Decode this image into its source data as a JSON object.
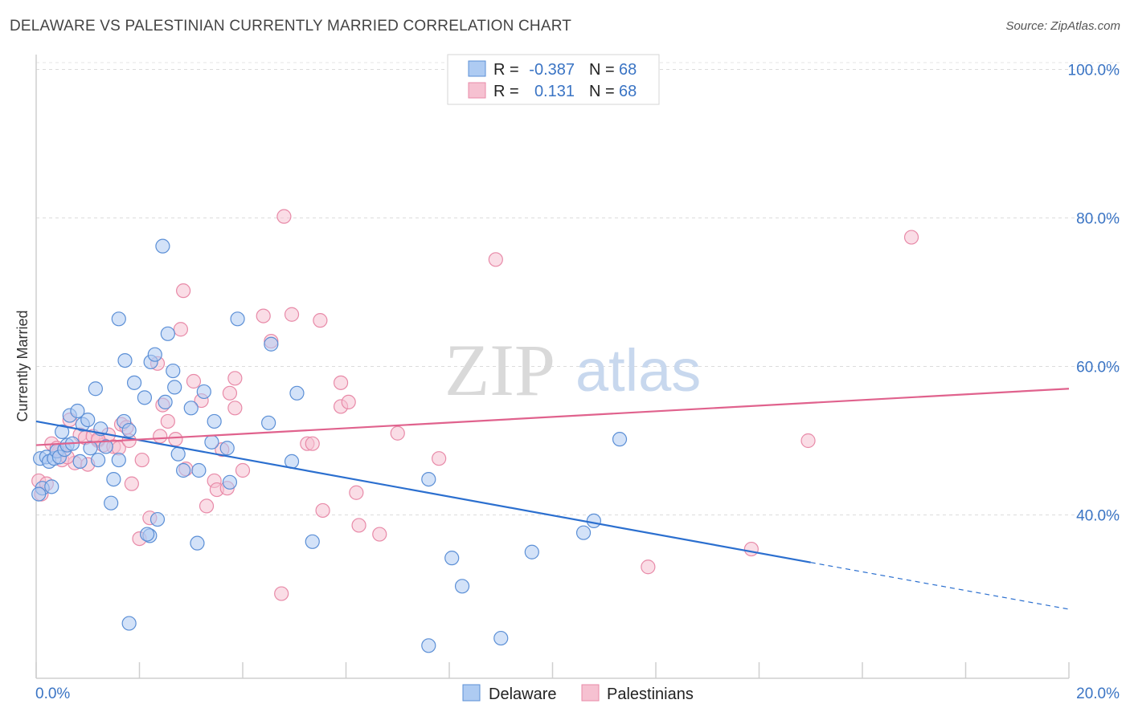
{
  "header": {
    "title": "DELAWARE VS PALESTINIAN CURRENTLY MARRIED CORRELATION CHART",
    "source": "Source: ZipAtlas.com"
  },
  "watermark": {
    "zip": "ZIP",
    "atlas": "atlas"
  },
  "legend": {
    "row1": {
      "r_label": "R =",
      "r_value": "-0.387",
      "n_label": "N =",
      "n_value": "68"
    },
    "row2": {
      "r_label": "R =",
      "r_value": "0.131",
      "n_label": "N =",
      "n_value": "68"
    }
  },
  "colors": {
    "delaware_fill": "#aecbf2",
    "delaware_stroke": "#5b8fd6",
    "delaware_line": "#2b6fcf",
    "palestinian_fill": "#f6c1d1",
    "palestinian_stroke": "#e88aa8",
    "palestinian_line": "#e0628d",
    "axis_text": "#3a74c4"
  },
  "chart_data": {
    "type": "scatter",
    "title": "DELAWARE VS PALESTINIAN CURRENTLY MARRIED CORRELATION CHART",
    "xlabel": "",
    "ylabel": "Currently Married",
    "xlim": [
      0,
      20
    ],
    "ylim": [
      18,
      102
    ],
    "x_tick_labels": [
      "0.0%",
      "20.0%"
    ],
    "y_ticks": [
      40,
      60,
      80,
      100
    ],
    "y_tick_labels": [
      "40.0%",
      "60.0%",
      "80.0%",
      "100.0%"
    ],
    "grid": true,
    "legend_position": "bottom",
    "series": [
      {
        "name": "Delaware",
        "r": -0.387,
        "n": 68,
        "trend": {
          "x0": 0,
          "y0": 52.6,
          "x1": 15,
          "y1": 33.6,
          "dashed_to_x": 20,
          "dashed_to_y": 27.3
        },
        "points": [
          [
            0.08,
            47.6
          ],
          [
            0.12,
            43.6
          ],
          [
            0.2,
            47.8
          ],
          [
            0.25,
            47.2
          ],
          [
            0.3,
            43.8
          ],
          [
            0.35,
            47.6
          ],
          [
            0.4,
            48.6
          ],
          [
            0.45,
            47.8
          ],
          [
            0.5,
            51.2
          ],
          [
            0.55,
            48.8
          ],
          [
            0.6,
            49.4
          ],
          [
            0.65,
            53.4
          ],
          [
            0.7,
            49.6
          ],
          [
            0.8,
            54.0
          ],
          [
            0.85,
            47.2
          ],
          [
            0.9,
            52.2
          ],
          [
            1.0,
            52.8
          ],
          [
            1.05,
            49.0
          ],
          [
            1.15,
            57.0
          ],
          [
            1.2,
            47.4
          ],
          [
            1.25,
            51.6
          ],
          [
            1.35,
            49.2
          ],
          [
            1.5,
            44.8
          ],
          [
            1.45,
            41.6
          ],
          [
            1.6,
            47.4
          ],
          [
            1.6,
            66.4
          ],
          [
            1.7,
            52.6
          ],
          [
            1.72,
            60.8
          ],
          [
            1.8,
            51.4
          ],
          [
            1.9,
            57.8
          ],
          [
            2.1,
            55.8
          ],
          [
            2.2,
            37.2
          ],
          [
            2.22,
            60.6
          ],
          [
            2.3,
            61.6
          ],
          [
            2.35,
            39.4
          ],
          [
            2.45,
            76.2
          ],
          [
            2.5,
            55.2
          ],
          [
            2.55,
            64.4
          ],
          [
            2.65,
            59.4
          ],
          [
            2.68,
            57.2
          ],
          [
            2.75,
            48.2
          ],
          [
            2.85,
            46.0
          ],
          [
            3.0,
            54.4
          ],
          [
            3.12,
            36.2
          ],
          [
            3.15,
            46.0
          ],
          [
            3.25,
            56.6
          ],
          [
            3.4,
            49.8
          ],
          [
            3.45,
            52.6
          ],
          [
            3.7,
            49.0
          ],
          [
            3.75,
            44.4
          ],
          [
            3.9,
            66.4
          ],
          [
            4.5,
            52.4
          ],
          [
            4.55,
            63.0
          ],
          [
            4.95,
            47.2
          ],
          [
            5.05,
            56.4
          ],
          [
            5.35,
            36.4
          ],
          [
            7.6,
            44.8
          ],
          [
            8.05,
            34.2
          ],
          [
            8.25,
            30.4
          ],
          [
            9.0,
            23.4
          ],
          [
            9.6,
            35.0
          ],
          [
            10.6,
            37.6
          ],
          [
            10.8,
            39.2
          ],
          [
            11.3,
            50.2
          ],
          [
            1.8,
            25.4
          ],
          [
            7.6,
            22.4
          ],
          [
            0.05,
            42.8
          ],
          [
            2.15,
            37.4
          ]
        ]
      },
      {
        "name": "Palestinians",
        "r": 0.131,
        "n": 68,
        "trend": {
          "x0": 0,
          "y0": 49.4,
          "x1": 20,
          "y1": 57.0
        },
        "points": [
          [
            0.05,
            44.6
          ],
          [
            0.1,
            42.8
          ],
          [
            0.2,
            44.2
          ],
          [
            0.3,
            49.6
          ],
          [
            0.45,
            48.6
          ],
          [
            0.5,
            47.4
          ],
          [
            0.65,
            52.8
          ],
          [
            0.75,
            47.0
          ],
          [
            0.85,
            50.8
          ],
          [
            0.95,
            50.4
          ],
          [
            1.0,
            46.8
          ],
          [
            1.1,
            50.6
          ],
          [
            1.2,
            50.0
          ],
          [
            1.3,
            49.4
          ],
          [
            1.4,
            50.8
          ],
          [
            1.5,
            49.2
          ],
          [
            1.6,
            49.0
          ],
          [
            1.65,
            52.2
          ],
          [
            1.75,
            51.8
          ],
          [
            1.8,
            50.0
          ],
          [
            1.85,
            44.2
          ],
          [
            2.0,
            36.8
          ],
          [
            2.05,
            47.4
          ],
          [
            2.2,
            39.6
          ],
          [
            2.35,
            60.4
          ],
          [
            2.4,
            50.6
          ],
          [
            2.45,
            54.8
          ],
          [
            2.55,
            52.6
          ],
          [
            2.7,
            50.2
          ],
          [
            2.8,
            65.0
          ],
          [
            2.85,
            70.2
          ],
          [
            2.9,
            46.2
          ],
          [
            3.05,
            58.0
          ],
          [
            3.2,
            55.4
          ],
          [
            3.3,
            41.2
          ],
          [
            3.45,
            44.6
          ],
          [
            3.5,
            43.4
          ],
          [
            3.6,
            48.8
          ],
          [
            3.7,
            43.6
          ],
          [
            3.75,
            56.4
          ],
          [
            3.85,
            54.4
          ],
          [
            3.85,
            58.4
          ],
          [
            4.0,
            46.0
          ],
          [
            4.4,
            66.8
          ],
          [
            4.55,
            63.4
          ],
          [
            4.75,
            29.4
          ],
          [
            4.8,
            80.2
          ],
          [
            4.95,
            67.0
          ],
          [
            5.25,
            49.6
          ],
          [
            5.35,
            49.6
          ],
          [
            5.5,
            66.2
          ],
          [
            5.55,
            40.6
          ],
          [
            5.9,
            57.8
          ],
          [
            5.9,
            54.6
          ],
          [
            6.05,
            55.2
          ],
          [
            6.2,
            43.0
          ],
          [
            6.25,
            38.6
          ],
          [
            6.65,
            37.4
          ],
          [
            7.0,
            51.0
          ],
          [
            7.8,
            47.6
          ],
          [
            8.9,
            74.4
          ],
          [
            11.85,
            33.0
          ],
          [
            13.85,
            35.4
          ],
          [
            14.95,
            50.0
          ],
          [
            16.95,
            77.4
          ],
          [
            1.2,
            50.2
          ],
          [
            0.6,
            47.8
          ],
          [
            0.4,
            49.0
          ]
        ]
      }
    ]
  },
  "bottom_legend": {
    "series1": "Delaware",
    "series2": "Palestinians"
  }
}
